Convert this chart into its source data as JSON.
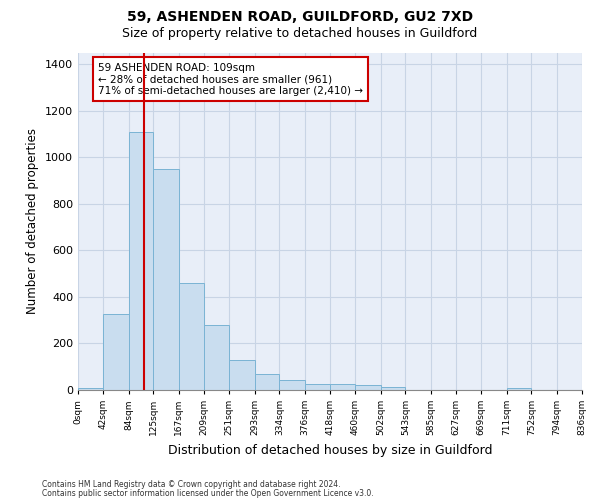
{
  "title1": "59, ASHENDEN ROAD, GUILDFORD, GU2 7XD",
  "title2": "Size of property relative to detached houses in Guildford",
  "xlabel": "Distribution of detached houses by size in Guildford",
  "ylabel": "Number of detached properties",
  "footer1": "Contains HM Land Registry data © Crown copyright and database right 2024.",
  "footer2": "Contains public sector information licensed under the Open Government Licence v3.0.",
  "bin_edges": [
    0,
    42,
    84,
    125,
    167,
    209,
    251,
    293,
    334,
    376,
    418,
    460,
    502,
    543,
    585,
    627,
    669,
    711,
    752,
    794,
    836
  ],
  "bar_heights": [
    10,
    325,
    1110,
    950,
    460,
    280,
    130,
    70,
    45,
    25,
    25,
    20,
    15,
    0,
    0,
    0,
    0,
    10,
    0,
    0
  ],
  "bar_color": "#c9ddef",
  "bar_edge_color": "#7ab3d4",
  "grid_color": "#c8d4e5",
  "background_color": "#e8eef8",
  "property_size": 109,
  "vline_color": "#cc0000",
  "annotation_text": "59 ASHENDEN ROAD: 109sqm\n← 28% of detached houses are smaller (961)\n71% of semi-detached houses are larger (2,410) →",
  "annotation_box_color": "#cc0000",
  "ylim": [
    0,
    1450
  ],
  "xlim": [
    0,
    836
  ],
  "yticks": [
    0,
    200,
    400,
    600,
    800,
    1000,
    1200,
    1400
  ]
}
